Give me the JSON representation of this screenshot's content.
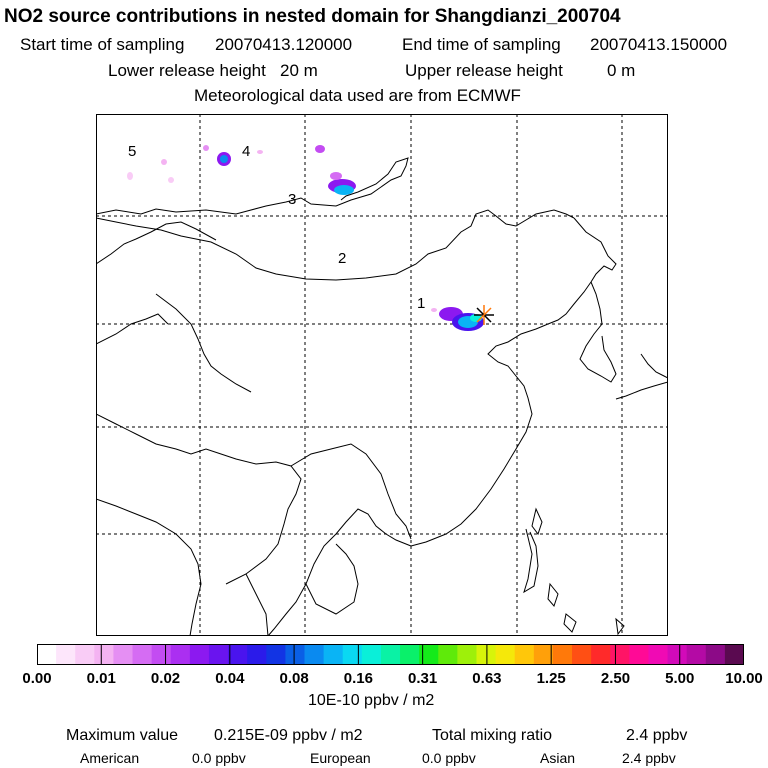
{
  "header": {
    "title": "NO2 source contributions in nested domain for Shangdianzi_200704",
    "start_label": "Start time of sampling",
    "start_value": "20070413.120000",
    "end_label": "End time of sampling",
    "end_value": "20070413.150000",
    "lower_label": "Lower release height",
    "lower_value": "20 m",
    "upper_label": "Upper release height",
    "upper_value": "0 m",
    "met_line": "Meteorological data used are from ECMWF"
  },
  "map": {
    "region_labels": [
      "1",
      "2",
      "3",
      "4",
      "5"
    ],
    "site_marker": "star-marker"
  },
  "colorbar": {
    "colors": [
      "#ffffff",
      "#fde6fb",
      "#f9ccf6",
      "#f4b3f2",
      "#e58ff3",
      "#d56cf3",
      "#c34cf2",
      "#ab2ff1",
      "#8c19f0",
      "#6a14ef",
      "#4a14ee",
      "#2b1bea",
      "#1234e4",
      "#0a5fe6",
      "#0a8af0",
      "#0ab4f5",
      "#0ad8f2",
      "#0aefd9",
      "#0af2a5",
      "#0af06a",
      "#15ea1a",
      "#5fea0a",
      "#9ef00a",
      "#d7f40a",
      "#f5e80a",
      "#ffc70a",
      "#ffa00a",
      "#ff790a",
      "#ff4f14",
      "#ff2a2a",
      "#ff1466",
      "#ff0a96",
      "#f00ab4",
      "#d20ab9",
      "#b40aa5",
      "#8c0a87",
      "#5a0a50"
    ],
    "tick_labels": [
      "0.00",
      "0.01",
      "0.02",
      "0.04",
      "0.08",
      "0.16",
      "0.31",
      "0.63",
      "1.25",
      "2.50",
      "5.00",
      "10.00"
    ],
    "units": "10E-10 ppbv / m2"
  },
  "stats": {
    "max_label": "Maximum value",
    "max_value": "0.215E-09 ppbv / m2",
    "tmr_label": "Total mixing ratio",
    "tmr_value": "2.4 ppbv",
    "american_label": "American",
    "american_value": "0.0 ppbv",
    "european_label": "European",
    "european_value": "0.0 ppbv",
    "asian_label": "Asian",
    "asian_value": "2.4 ppbv"
  }
}
